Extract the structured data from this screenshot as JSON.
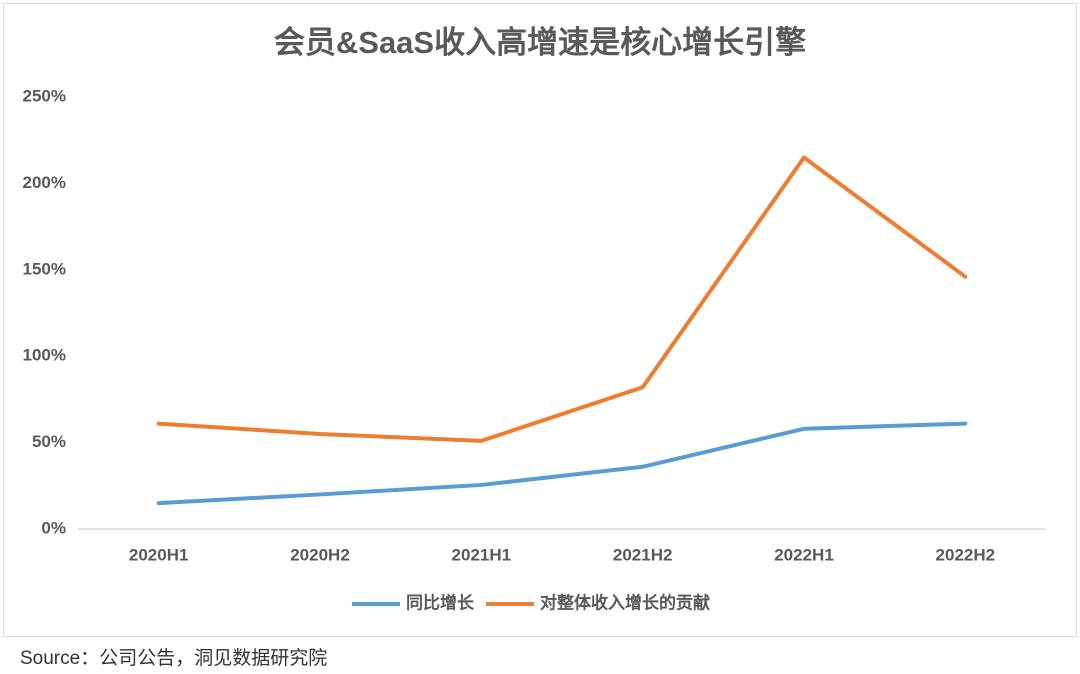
{
  "chart_data": {
    "type": "line",
    "title": "会员&SaaS收入高增速是核心增长引擎",
    "categories": [
      "2020H1",
      "2020H2",
      "2021H1",
      "2021H2",
      "2022H1",
      "2022H2"
    ],
    "series": [
      {
        "name": "同比增长",
        "color": "#5b9bd5",
        "values": [
          15,
          20,
          25.5,
          36,
          58,
          61
        ]
      },
      {
        "name": "对整体收入增长的贡献",
        "color": "#ed7d31",
        "values": [
          61,
          55,
          51,
          82,
          215,
          146
        ]
      }
    ],
    "ylim": [
      0,
      250
    ],
    "yticks": [
      {
        "value": 0,
        "label": "0%"
      },
      {
        "value": 50,
        "label": "50%"
      },
      {
        "value": 100,
        "label": "100%"
      },
      {
        "value": 150,
        "label": "150%"
      },
      {
        "value": 200,
        "label": "200%"
      },
      {
        "value": 250,
        "label": "250%"
      }
    ],
    "grid": false,
    "legend": "bottom"
  },
  "source": "Source：公司公告，洞见数据研究院"
}
